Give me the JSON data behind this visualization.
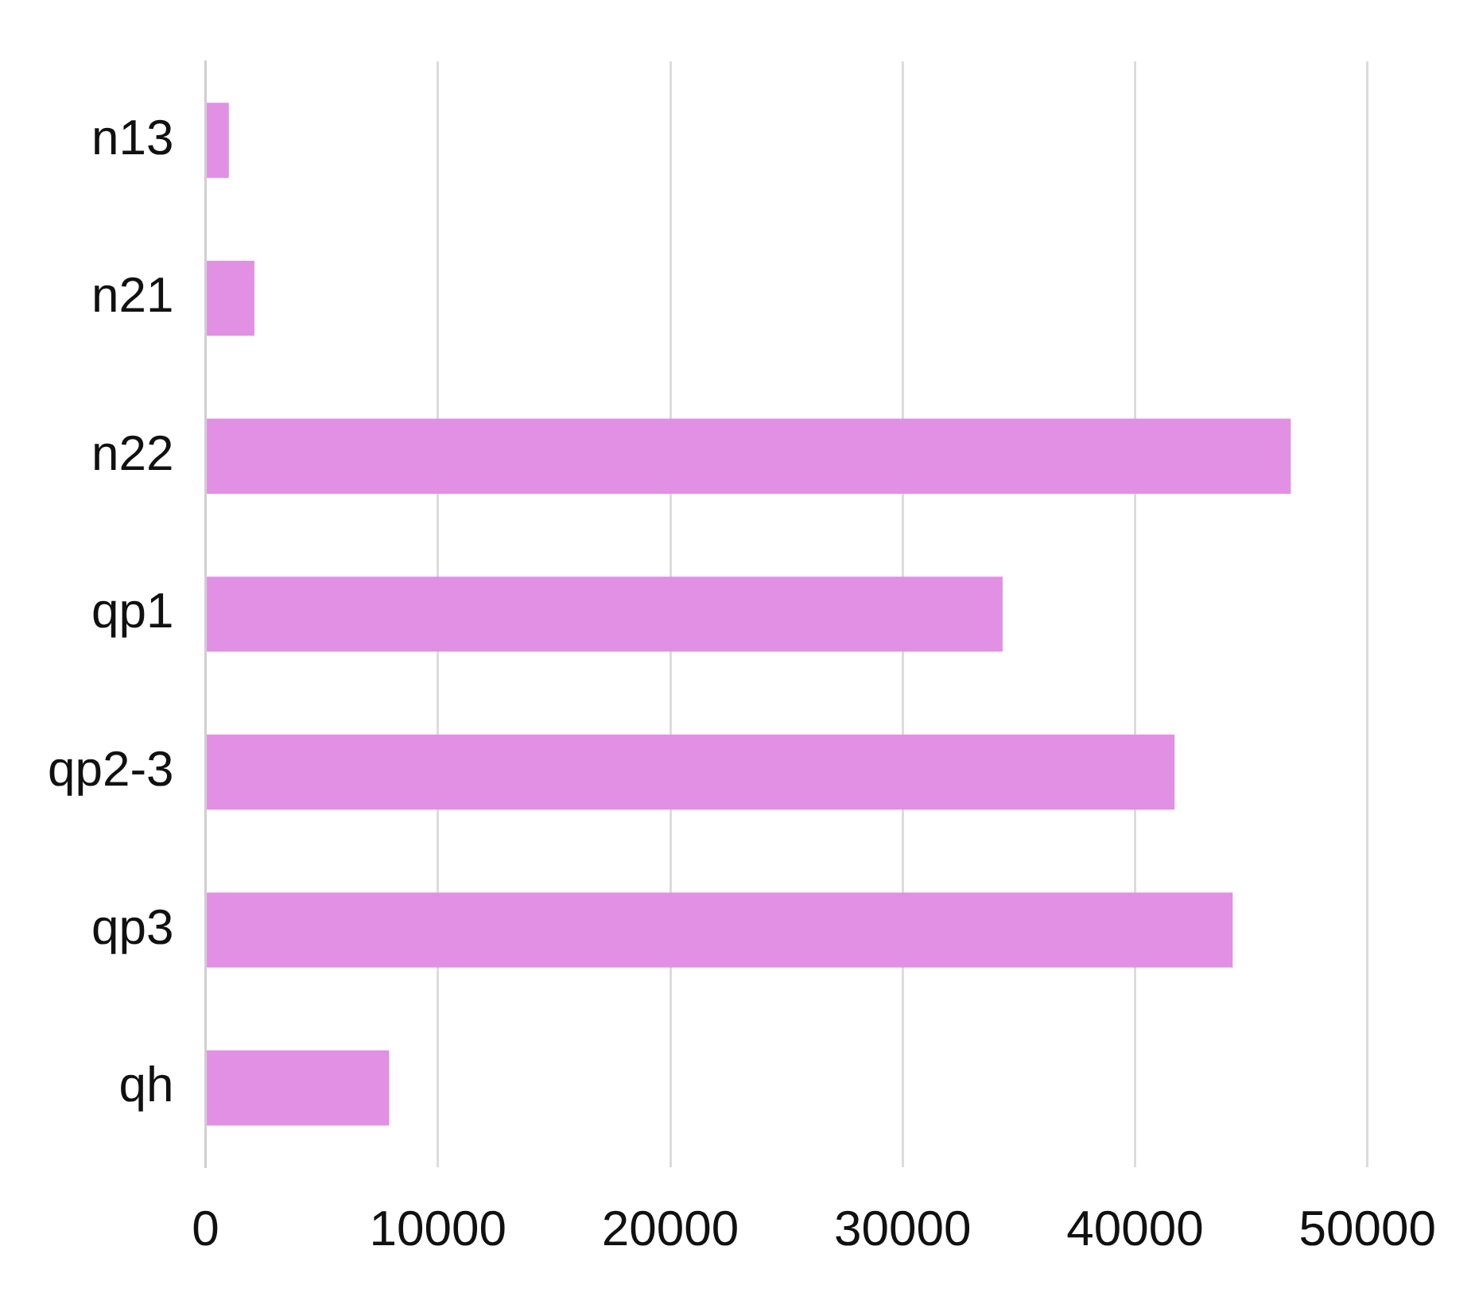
{
  "chart_data": {
    "type": "bar",
    "orientation": "horizontal",
    "categories": [
      "n13",
      "n21",
      "n22",
      "qp1",
      "qp2-3",
      "qp3",
      "qh"
    ],
    "values": [
      1000,
      2100,
      46700,
      34300,
      41700,
      44200,
      7900
    ],
    "color": "#e190e4",
    "xlim": [
      0,
      50000
    ],
    "xticks": [
      0,
      10000,
      20000,
      30000,
      40000,
      50000
    ],
    "grid": "x",
    "legend": false
  }
}
